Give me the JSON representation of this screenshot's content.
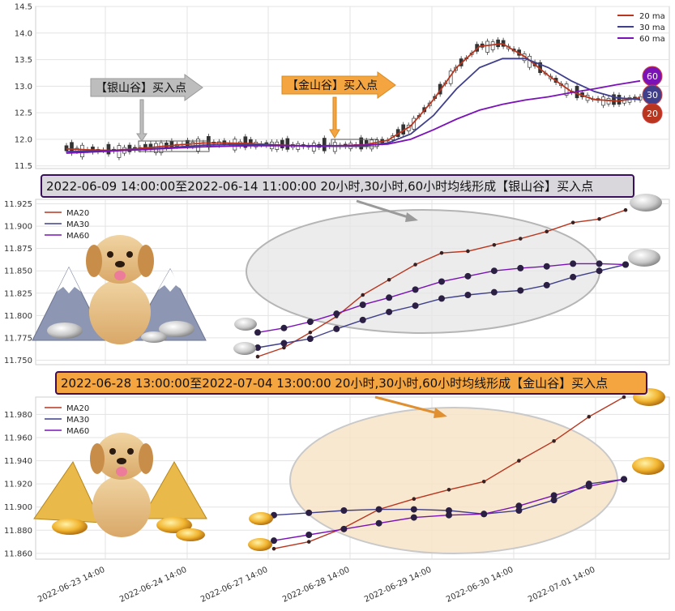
{
  "colors": {
    "ma20": "#b9351e",
    "ma30": "#3f3f8c",
    "ma60": "#7b12b8",
    "silver_arrow": "#bdbdbd",
    "gold_arrow": "#f4a540",
    "silver_banner": "#d9d6dc",
    "gold_banner": "#f4a540",
    "badge60": "#7b12b8",
    "badge30": "#3f3f8c",
    "badge20": "#b9351e"
  },
  "annotations": {
    "silver_arrow_label": "【银山谷】买入点",
    "gold_arrow_label": "【金山谷】买入点",
    "silver_banner": "2022-06-09 14:00:00至2022-06-14 11:00:00 20小时,30小时,60小时均线形成【银山谷】买入点",
    "gold_banner": "2022-06-28 13:00:00至2022-07-04 13:00:00 20小时,30小时,60小时均线形成【金山谷】买入点",
    "badges": [
      "60",
      "30",
      "20"
    ]
  },
  "x_tick_labels": [
    "2022-06-23 14:00",
    "2022-06-24 14:00",
    "2022-06-27 14:00",
    "2022-06-28 14:00",
    "2022-06-29 14:00",
    "2022-06-30 14:00",
    "2022-07-01 14:00"
  ],
  "chart_data": [
    {
      "type": "line",
      "subtype": "candlestick-with-moving-averages",
      "ylim": [
        11.45,
        14.5
      ],
      "y_ticks": [
        11.5,
        12.0,
        12.5,
        13.0,
        13.5,
        14.0,
        14.5
      ],
      "legend": [
        "20 ma",
        "30 ma",
        "60 ma"
      ],
      "legend_position": "top-right",
      "grid": true,
      "x": [
        0,
        4,
        8,
        12,
        16,
        20,
        24,
        28,
        32,
        36,
        40,
        44,
        48,
        52,
        56,
        60,
        64,
        68,
        72,
        76,
        80,
        84,
        88,
        92,
        96,
        100
      ],
      "series": [
        {
          "name": "20 ma",
          "values": [
            11.82,
            11.8,
            11.79,
            11.82,
            11.86,
            11.9,
            11.93,
            11.93,
            11.92,
            11.9,
            11.88,
            11.87,
            11.88,
            11.9,
            11.98,
            12.25,
            12.75,
            13.35,
            13.75,
            13.8,
            13.55,
            13.2,
            12.9,
            12.75,
            12.72,
            12.78
          ]
        },
        {
          "name": "30 ma",
          "values": [
            11.77,
            11.78,
            11.79,
            11.8,
            11.83,
            11.86,
            11.89,
            11.9,
            11.9,
            11.89,
            11.88,
            11.87,
            11.87,
            11.88,
            11.93,
            12.1,
            12.45,
            12.95,
            13.35,
            13.52,
            13.52,
            13.35,
            13.1,
            12.9,
            12.78,
            12.75
          ]
        },
        {
          "name": "60 ma",
          "values": [
            11.74,
            11.76,
            11.78,
            11.8,
            11.82,
            11.84,
            11.86,
            11.87,
            11.88,
            11.88,
            11.88,
            11.88,
            11.88,
            11.89,
            11.91,
            12.0,
            12.18,
            12.38,
            12.55,
            12.66,
            12.74,
            12.8,
            12.88,
            12.95,
            13.03,
            13.1
          ]
        }
      ]
    },
    {
      "type": "line",
      "title": "2022-06-09 14:00:00至2022-06-14 11:00:00 20小时,30小时,60小时均线形成【银山谷】买入点",
      "ylim": [
        11.745,
        11.93
      ],
      "y_ticks": [
        11.75,
        11.775,
        11.8,
        11.825,
        11.85,
        11.875,
        11.9,
        11.925
      ],
      "legend": [
        "MA20",
        "MA30",
        "MA60"
      ],
      "legend_position": "top-left",
      "grid": true,
      "x": [
        0,
        1,
        2,
        3,
        4,
        5,
        6,
        7,
        8,
        9,
        10,
        11,
        12,
        13,
        14
      ],
      "series": [
        {
          "name": "MA20",
          "values": [
            11.754,
            11.764,
            11.781,
            11.799,
            11.823,
            11.84,
            11.857,
            11.87,
            11.872,
            11.879,
            11.886,
            11.894,
            11.904,
            11.908,
            11.918
          ]
        },
        {
          "name": "MA30",
          "values": [
            11.764,
            11.769,
            11.774,
            11.785,
            11.795,
            11.804,
            11.811,
            11.819,
            11.823,
            11.826,
            11.828,
            11.834,
            11.843,
            11.85,
            11.857
          ]
        },
        {
          "name": "MA60",
          "values": [
            11.781,
            11.786,
            11.793,
            11.802,
            11.812,
            11.82,
            11.829,
            11.838,
            11.844,
            11.85,
            11.853,
            11.855,
            11.858,
            11.858,
            11.857
          ]
        }
      ]
    },
    {
      "type": "line",
      "title": "2022-06-28 13:00:00至2022-07-04 13:00:00 20小时,30小时,60小时均线形成【金山谷】买入点",
      "ylim": [
        11.855,
        11.995
      ],
      "y_ticks": [
        11.86,
        11.88,
        11.9,
        11.92,
        11.94,
        11.96,
        11.98
      ],
      "legend": [
        "MA20",
        "MA30",
        "MA60"
      ],
      "legend_position": "top-left",
      "grid": true,
      "x": [
        0,
        1,
        2,
        3,
        4,
        5,
        6,
        7,
        8,
        9,
        10
      ],
      "series": [
        {
          "name": "MA20",
          "values": [
            11.864,
            11.87,
            11.882,
            11.898,
            11.907,
            11.915,
            11.922,
            11.94,
            11.957,
            11.978,
            11.995
          ]
        },
        {
          "name": "MA30",
          "values": [
            11.893,
            11.895,
            11.897,
            11.898,
            11.898,
            11.897,
            11.894,
            11.897,
            11.906,
            11.92,
            11.924
          ]
        },
        {
          "name": "MA60",
          "values": [
            11.871,
            11.876,
            11.881,
            11.886,
            11.891,
            11.893,
            11.894,
            11.901,
            11.91,
            11.918,
            11.924
          ]
        }
      ]
    }
  ]
}
